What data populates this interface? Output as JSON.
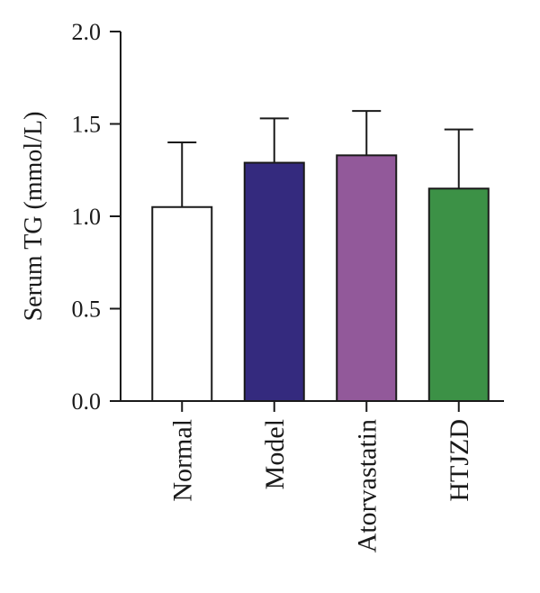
{
  "chart_data": {
    "type": "bar",
    "ylabel": "Serum TG (mmol/L)",
    "categories": [
      "Normal",
      "Model",
      "Atorvastatin",
      "HTJZD"
    ],
    "values": [
      1.05,
      1.29,
      1.33,
      1.15
    ],
    "error_upper": [
      1.4,
      1.53,
      1.57,
      1.47
    ],
    "colors": [
      "#ffffff",
      "#342a7e",
      "#92599a",
      "#3c9146"
    ],
    "ylim": [
      0,
      2.0
    ],
    "yticks": [
      "0.0",
      "0.5",
      "1.0",
      "1.5",
      "2.0"
    ],
    "ytick_values": [
      0,
      0.5,
      1.0,
      1.5,
      2.0
    ],
    "grid": false,
    "legend": "none"
  }
}
